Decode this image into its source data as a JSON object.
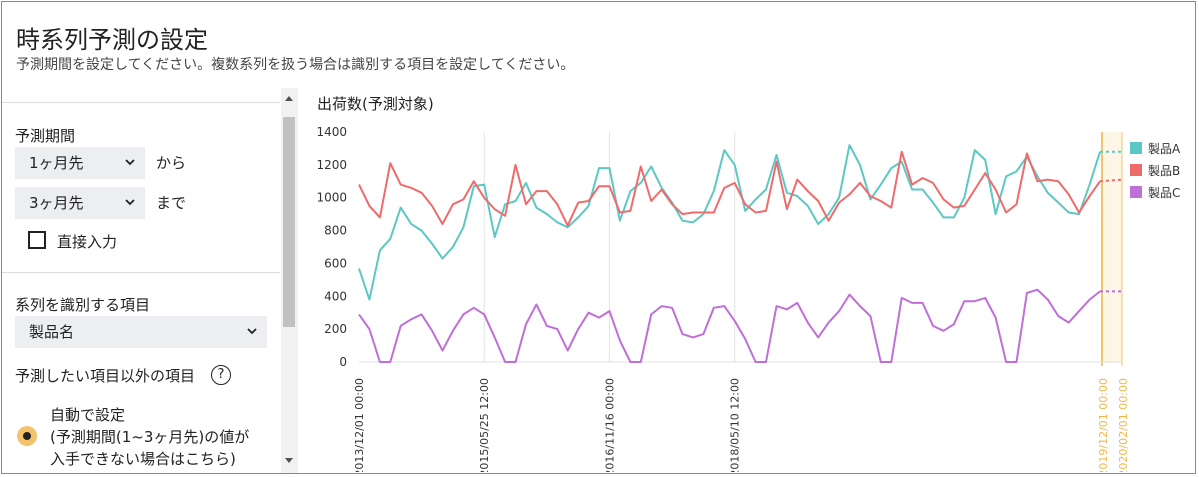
{
  "header": {
    "title": "時系列予測の設定",
    "subtitle": "予測期間を設定してください。複数系列を扱う場合は識別する項目を設定してください。"
  },
  "settings": {
    "forecast_period_label": "予測期間",
    "from_select": "1ヶ月先",
    "from_suffix": "から",
    "to_select": "3ヶ月先",
    "to_suffix": "まで",
    "direct_input_label": "直接入力",
    "direct_input_checked": false,
    "series_id_label": "系列を識別する項目",
    "series_id_select": "製品名",
    "other_items_label": "予測したい項目以外の項目",
    "help_glyph": "?",
    "auto_option_lines": [
      "自動で設定",
      "(予測期間(1~3ヶ月先)の値が",
      "入手できない場合はこちら)"
    ],
    "auto_option_selected": true
  },
  "chart_data": {
    "type": "line",
    "title": "出荷数(予測対象)",
    "ylim": [
      0,
      1400
    ],
    "yticks": [
      0,
      200,
      400,
      600,
      800,
      1000,
      1200,
      1400
    ],
    "grid": "vertical",
    "legend_position": "right",
    "x_tick_labels": [
      "2013/12/01 00:00",
      "2015/05/25 12:00",
      "2016/11/16 00:00",
      "2018/05/10 12:00"
    ],
    "forecast_tick_labels": [
      "2019/12/01 00:00",
      "2020/02/01 00:00"
    ],
    "series": [
      {
        "name": "製品A",
        "color": "#5cc8c4",
        "values": [
          570,
          380,
          680,
          750,
          940,
          840,
          800,
          720,
          630,
          700,
          820,
          1070,
          1080,
          760,
          960,
          980,
          1090,
          940,
          900,
          850,
          820,
          880,
          950,
          1180,
          1180,
          860,
          1040,
          1090,
          1190,
          1060,
          970,
          860,
          850,
          900,
          1040,
          1290,
          1200,
          920,
          990,
          1050,
          1260,
          1030,
          1010,
          950,
          840,
          900,
          1000,
          1320,
          1200,
          990,
          1080,
          1180,
          1220,
          1050,
          1050,
          970,
          880,
          880,
          1000,
          1290,
          1230,
          900,
          1130,
          1160,
          1250,
          1130,
          1030,
          970,
          910,
          900,
          1080,
          1280
        ],
        "forecast": [
          1280
        ]
      },
      {
        "name": "製品B",
        "color": "#ef6b6b",
        "values": [
          1080,
          950,
          880,
          1210,
          1080,
          1060,
          1030,
          950,
          840,
          960,
          990,
          1100,
          1000,
          930,
          890,
          1200,
          960,
          1040,
          1040,
          960,
          830,
          970,
          980,
          1070,
          1070,
          910,
          920,
          1190,
          980,
          1050,
          960,
          900,
          910,
          910,
          910,
          1060,
          1090,
          960,
          910,
          920,
          1220,
          930,
          1110,
          1040,
          980,
          860,
          970,
          1020,
          1090,
          1010,
          980,
          940,
          1280,
          1080,
          1120,
          1090,
          990,
          940,
          950,
          1050,
          1150,
          1050,
          910,
          960,
          1270,
          1100,
          1110,
          1100,
          1020,
          910,
          1010,
          1100
        ],
        "forecast": [
          1110
        ]
      },
      {
        "name": "製品C",
        "color": "#c06ed8",
        "values": [
          290,
          200,
          0,
          0,
          220,
          260,
          290,
          190,
          70,
          190,
          290,
          330,
          290,
          150,
          0,
          0,
          230,
          350,
          220,
          200,
          70,
          200,
          300,
          270,
          310,
          130,
          0,
          0,
          290,
          340,
          330,
          170,
          150,
          170,
          330,
          340,
          250,
          140,
          0,
          0,
          340,
          320,
          360,
          240,
          150,
          240,
          310,
          410,
          340,
          280,
          0,
          0,
          390,
          360,
          360,
          220,
          190,
          230,
          370,
          370,
          390,
          270,
          0,
          0,
          420,
          440,
          380,
          280,
          240,
          310,
          380,
          430
        ],
        "forecast": [
          430
        ]
      }
    ]
  }
}
